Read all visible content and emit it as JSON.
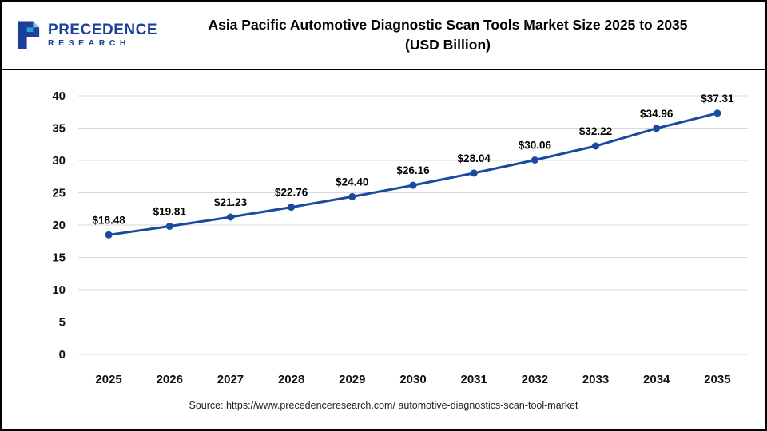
{
  "logo": {
    "line1": "PRECEDENCE",
    "line2": "RESEARCH"
  },
  "header": {
    "title_line1": "Asia Pacific Automotive Diagnostic Scan Tools Market Size 2025 to 2035",
    "title_line2": "(USD Billion)"
  },
  "footer": {
    "source": "Source: https://www.precedenceresearch.com/ automotive-diagnostics-scan-tool-market"
  },
  "chart_data": {
    "type": "line",
    "title": "Asia Pacific Automotive Diagnostic Scan Tools Market Size 2025 to 2035 (USD Billion)",
    "categories": [
      "2025",
      "2026",
      "2027",
      "2028",
      "2029",
      "2030",
      "2031",
      "2032",
      "2033",
      "2034",
      "2035"
    ],
    "values": [
      18.48,
      19.81,
      21.23,
      22.76,
      24.4,
      26.16,
      28.04,
      30.06,
      32.22,
      34.96,
      37.31
    ],
    "point_labels": [
      "$18.48",
      "$19.81",
      "$21.23",
      "$22.76",
      "$24.40",
      "$26.16",
      "$28.04",
      "$30.06",
      "$32.22",
      "$34.96",
      "$37.31"
    ],
    "xlabel": "",
    "ylabel": "",
    "ylim": [
      0,
      40
    ],
    "yticks": [
      0,
      5,
      10,
      15,
      20,
      25,
      30,
      35,
      40
    ],
    "grid": true,
    "legend": "none",
    "line_color": "#1a4a9e",
    "marker_color": "#1a4a9e",
    "gridline_color": "#d9d9d9"
  }
}
